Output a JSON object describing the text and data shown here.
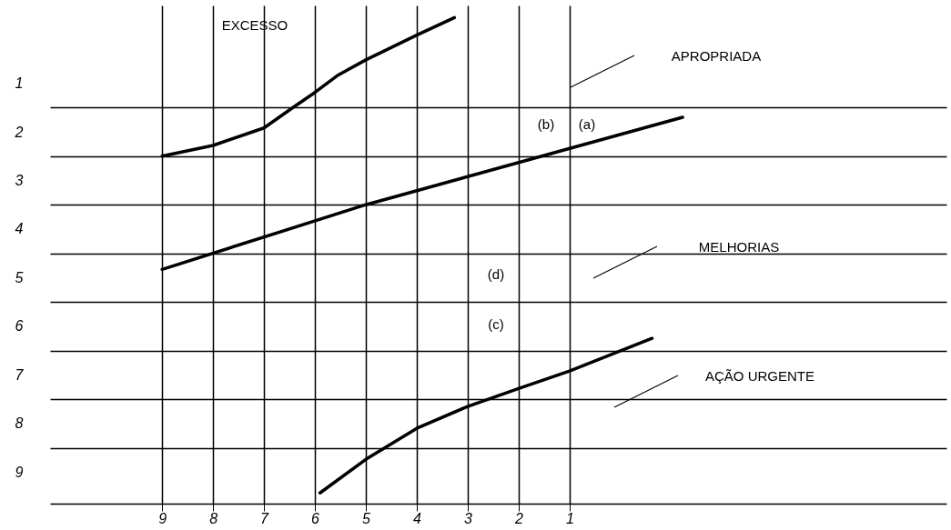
{
  "chart_data": {
    "type": "line",
    "series": [
      {
        "color": "#000000",
        "x": [
          9,
          8,
          7,
          6.43,
          6,
          5.54,
          5,
          4,
          3.26
        ],
        "values": [
          2.5,
          2.28,
          1.92,
          1.5,
          1.19,
          0.83,
          0.52,
          0.01,
          -0.35
        ]
      },
      {
        "color": "#000000",
        "x": [
          9,
          5,
          -1.22
        ],
        "values": [
          4.83,
          3.5,
          1.7
        ]
      },
      {
        "color": "#000000",
        "x": [
          5.9,
          5,
          4,
          3,
          2,
          1,
          -0.62
        ],
        "values": [
          9.43,
          8.74,
          8.1,
          7.65,
          7.28,
          6.92,
          6.25
        ]
      }
    ],
    "xlim": [
      11.2,
      -6.4
    ],
    "ylim": [
      9.65,
      -0.6
    ],
    "xticks": [
      9,
      8,
      7,
      6,
      5,
      4,
      3,
      2,
      1
    ],
    "yticks": [
      1,
      2,
      3,
      4,
      5,
      6,
      7,
      8,
      9,
      {
        "value": 1.5,
        "label": null
      },
      {
        "value": 2.5,
        "label": null
      },
      {
        "value": 3.5,
        "label": null
      },
      {
        "value": 4.5,
        "label": null
      },
      {
        "value": 5.5,
        "label": null
      },
      {
        "value": 6.5,
        "label": null
      },
      {
        "value": 7.5,
        "label": null
      },
      {
        "value": 8.5,
        "label": null
      }
    ],
    "grid": true,
    "marker": "none",
    "line_style": "solid",
    "annotations": [
      "EXCESSO",
      "APROPRIADA",
      "MELHORIAS",
      "AÇÃO URGENTE",
      "(b)",
      "(a)",
      "(d)",
      "(c)"
    ]
  }
}
